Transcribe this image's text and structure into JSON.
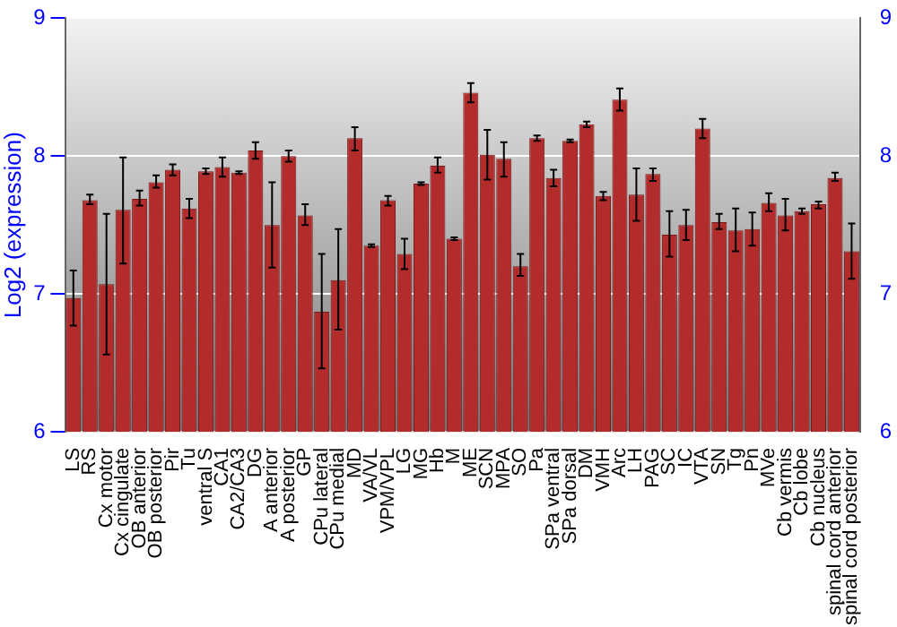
{
  "chart_data": {
    "type": "bar",
    "ylabel": "Log2 (expression)",
    "categories": [
      "LS",
      "RS",
      "Cx motor",
      "Cx cingulate",
      "OB anterior",
      "OB posterior",
      "Pir",
      "Tu",
      "ventral S",
      "CA1",
      "CA2/CA3",
      "DG",
      "A anterior",
      "A posterior",
      "GP",
      "CPu lateral",
      "CPu medial",
      "MD",
      "VA/VL",
      "VPM/VPL",
      "LG",
      "MG",
      "Hb",
      "M",
      "ME",
      "SCN",
      "MPA",
      "SO",
      "Pa",
      "SPa ventral",
      "SPa dorsal",
      "DM",
      "VMH",
      "Arc",
      "LH",
      "PAG",
      "SC",
      "IC",
      "VTA",
      "SN",
      "Tg",
      "Pn",
      "MVe",
      "Cb vermis",
      "Cb lobe",
      "Cb nucleus",
      "spinal cord anterior",
      "spinal cord posterior"
    ],
    "values": [
      6.97,
      7.68,
      7.07,
      7.61,
      7.69,
      7.81,
      7.9,
      7.62,
      7.89,
      7.92,
      7.88,
      8.04,
      7.5,
      8.0,
      7.57,
      6.87,
      7.1,
      8.13,
      7.35,
      7.68,
      7.29,
      7.8,
      7.93,
      7.4,
      8.46,
      8.01,
      7.98,
      7.2,
      8.13,
      7.84,
      8.11,
      8.23,
      7.71,
      8.41,
      7.72,
      7.87,
      7.43,
      7.5,
      8.2,
      7.52,
      7.46,
      7.47,
      7.66,
      7.57,
      7.6,
      7.65,
      7.84,
      7.31
    ],
    "errors": [
      [
        6.77,
        7.17
      ],
      [
        7.65,
        7.72
      ],
      [
        6.56,
        7.58
      ],
      [
        7.22,
        7.99
      ],
      [
        7.64,
        7.75
      ],
      [
        7.77,
        7.86
      ],
      [
        7.86,
        7.94
      ],
      [
        7.55,
        7.69
      ],
      0.02,
      [
        7.85,
        7.99
      ],
      0.01,
      [
        7.98,
        8.1
      ],
      [
        7.19,
        7.81
      ],
      [
        7.96,
        8.04
      ],
      [
        7.5,
        7.65
      ],
      [
        6.46,
        7.29
      ],
      [
        6.74,
        7.47
      ],
      [
        8.04,
        8.21
      ],
      0.01,
      [
        7.64,
        7.71
      ],
      [
        7.18,
        7.4
      ],
      0.01,
      [
        7.88,
        7.99
      ],
      0.01,
      [
        8.39,
        8.53
      ],
      [
        7.83,
        8.19
      ],
      [
        7.85,
        8.1
      ],
      [
        7.13,
        7.29
      ],
      0.02,
      [
        7.78,
        7.9
      ],
      0.01,
      0.02,
      0.03,
      [
        8.33,
        8.49
      ],
      [
        7.53,
        7.91
      ],
      [
        7.82,
        7.91
      ],
      [
        7.27,
        7.6
      ],
      [
        7.39,
        7.61
      ],
      [
        8.13,
        8.27
      ],
      [
        7.47,
        7.58
      ],
      [
        7.31,
        7.62
      ],
      [
        7.35,
        7.59
      ],
      [
        7.6,
        7.73
      ],
      [
        7.46,
        7.69
      ],
      [
        7.58,
        7.62
      ],
      [
        7.62,
        7.67
      ],
      [
        7.82,
        7.88
      ],
      [
        7.11,
        7.51
      ]
    ],
    "color": "#b22c2c",
    "ylim": [
      6,
      9
    ],
    "yticks": [
      6,
      7,
      8,
      9
    ],
    "y2lim": [
      6,
      9
    ],
    "y2ticks": [
      6,
      7,
      8,
      9
    ],
    "grid": "y",
    "legend": false
  }
}
